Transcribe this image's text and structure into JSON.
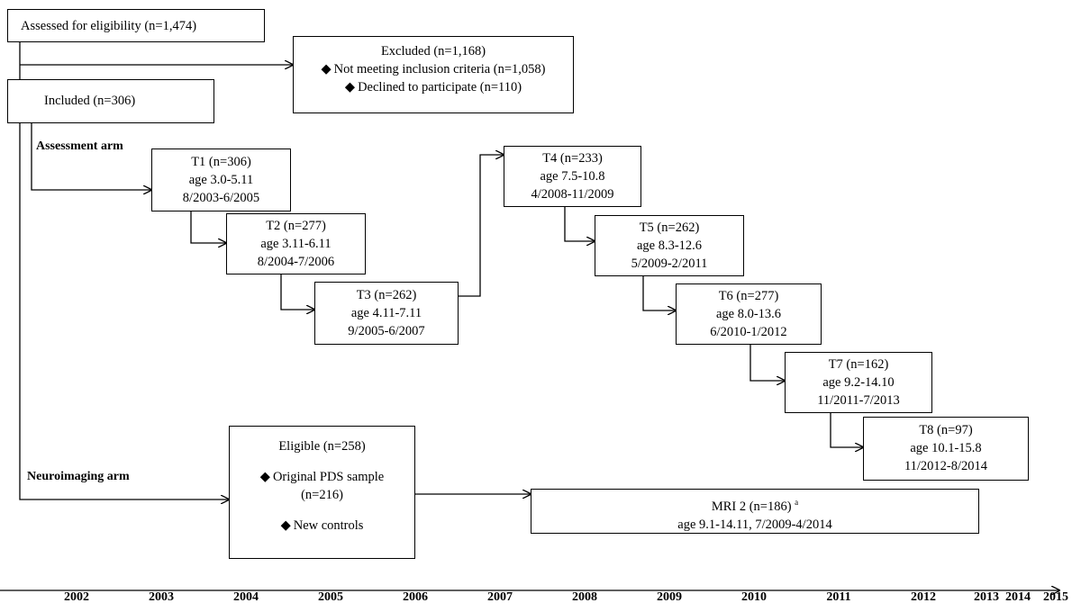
{
  "flow": {
    "assessed": "Assessed for eligibility (n=1,474)",
    "excluded": {
      "title": "Excluded (n=1,168)",
      "items": [
        "Not meeting inclusion criteria (n=1,058)",
        "Declined to participate (n=110)"
      ]
    },
    "included": "Included (n=306)"
  },
  "arms": {
    "assessment": "Assessment arm",
    "neuroimaging": "Neuroimaging arm"
  },
  "waves": [
    {
      "label": "T1 (n=306)",
      "age": "age 3.0-5.11",
      "dates": "8/2003-6/2005"
    },
    {
      "label": "T2 (n=277)",
      "age": "age 3.11-6.11",
      "dates": "8/2004-7/2006"
    },
    {
      "label": "T3 (n=262)",
      "age": "age 4.11-7.11",
      "dates": "9/2005-6/2007"
    },
    {
      "label": "T4 (n=233)",
      "age": "age 7.5-10.8",
      "dates": "4/2008-11/2009"
    },
    {
      "label": "T5 (n=262)",
      "age": "age 8.3-12.6",
      "dates": "5/2009-2/2011"
    },
    {
      "label": "T6 (n=277)",
      "age": "age 8.0-13.6",
      "dates": "6/2010-1/2012"
    },
    {
      "label": "T7 (n=162)",
      "age": "age 9.2-14.10",
      "dates": "11/2011-7/2013"
    },
    {
      "label": "T8 (n=97)",
      "age": "age 10.1-15.8",
      "dates": "11/2012-8/2014"
    }
  ],
  "eligible": {
    "title": "Eligible (n=258)",
    "item1": "Original PDS sample",
    "item1_n": "(n=216)",
    "item2": "New controls"
  },
  "mri": {
    "title": "MRI 2 (n=186)",
    "sup": "a",
    "detail": "age 9.1-14.11, 7/2009-4/2014"
  },
  "bullet": "◆",
  "timeline": [
    "2002",
    "2003",
    "2004",
    "2005",
    "2006",
    "2007",
    "2008",
    "2009",
    "2010",
    "2011",
    "2012",
    "2013",
    "2014",
    "2015"
  ]
}
